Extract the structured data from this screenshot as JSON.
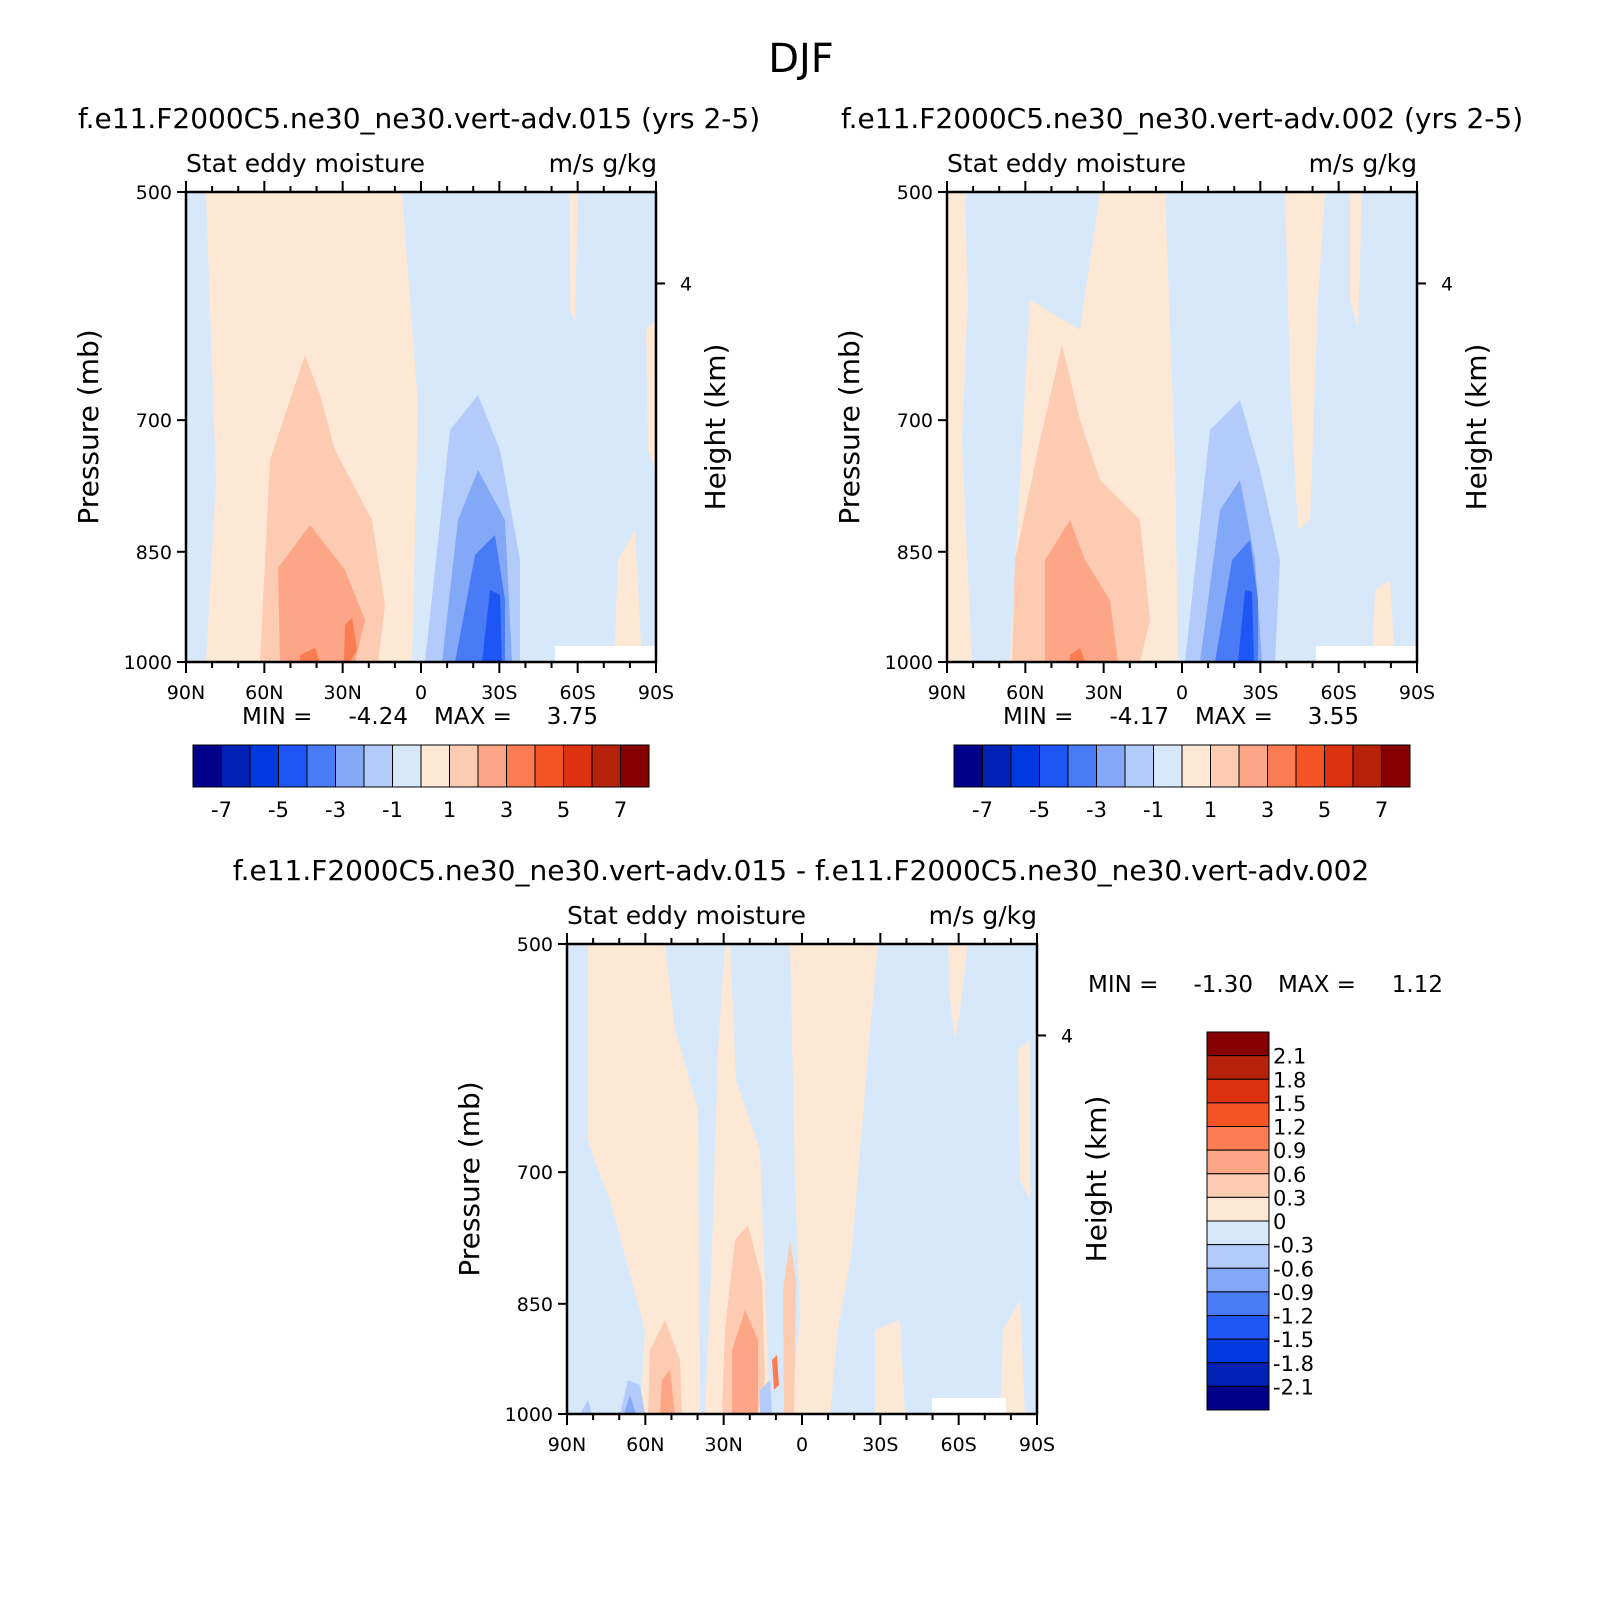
{
  "page": {
    "title": "DJF"
  },
  "chart_data": [
    {
      "type": "heatmap",
      "title": "f.e11.F2000C5.ne30_ne30.vert-adv.015 (yrs 2-5)",
      "subtitle_left": "Stat eddy moisture",
      "subtitle_right": "m/s g/kg",
      "ylabel": "Pressure (mb)",
      "ylabel_right": "Height (km)",
      "y_ticks": [
        "500",
        "700",
        "850",
        "1000"
      ],
      "y_right_ticks": [
        "4"
      ],
      "x_ticks": [
        "90N",
        "60N",
        "30N",
        "0",
        "30S",
        "60S",
        "90S"
      ],
      "xlim": [
        90,
        -90
      ],
      "ylim": [
        500,
        1000
      ],
      "stats": {
        "min_label": "MIN =",
        "min": "-4.24",
        "max_label": "MAX =",
        "max": "3.75"
      },
      "colorbar_labels": [
        "-7",
        "-5",
        "-3",
        "-1",
        "1",
        "3",
        "5",
        "7"
      ],
      "features": [
        {
          "lat": -25,
          "p_top": 660,
          "p_bottom": 1000,
          "peak": -4.24
        },
        {
          "lat": 42,
          "p_top": 650,
          "p_bottom": 1000,
          "peak": 3.75
        }
      ]
    },
    {
      "type": "heatmap",
      "title": "f.e11.F2000C5.ne30_ne30.vert-adv.002 (yrs 2-5)",
      "subtitle_left": "Stat eddy moisture",
      "subtitle_right": "m/s g/kg",
      "ylabel": "Pressure (mb)",
      "ylabel_right": "Height (km)",
      "y_ticks": [
        "500",
        "700",
        "850",
        "1000"
      ],
      "y_right_ticks": [
        "4"
      ],
      "x_ticks": [
        "90N",
        "60N",
        "30N",
        "0",
        "30S",
        "60S",
        "90S"
      ],
      "xlim": [
        90,
        -90
      ],
      "ylim": [
        500,
        1000
      ],
      "stats": {
        "min_label": "MIN =",
        "min": "-4.17",
        "max_label": "MAX =",
        "max": "3.55"
      },
      "colorbar_labels": [
        "-7",
        "-5",
        "-3",
        "-1",
        "1",
        "3",
        "5",
        "7"
      ],
      "features": [
        {
          "lat": -25,
          "p_top": 670,
          "p_bottom": 1000,
          "peak": -4.17
        },
        {
          "lat": 42,
          "p_top": 650,
          "p_bottom": 1000,
          "peak": 3.55
        }
      ]
    },
    {
      "type": "heatmap",
      "title": "f.e11.F2000C5.ne30_ne30.vert-adv.015 - f.e11.F2000C5.ne30_ne30.vert-adv.002",
      "subtitle_left": "Stat eddy moisture",
      "subtitle_right": "m/s g/kg",
      "ylabel": "Pressure (mb)",
      "ylabel_right": "Height (km)",
      "y_ticks": [
        "500",
        "700",
        "850",
        "1000"
      ],
      "y_right_ticks": [
        "4"
      ],
      "x_ticks": [
        "90N",
        "60N",
        "30N",
        "0",
        "30S",
        "60S",
        "90S"
      ],
      "xlim": [
        90,
        -90
      ],
      "ylim": [
        500,
        1000
      ],
      "stats": {
        "min_label": "MIN =",
        "min": "-1.30",
        "max_label": "MAX =",
        "max": "1.12"
      },
      "colorbar_labels": [
        "2.1",
        "1.8",
        "1.5",
        "1.2",
        "0.9",
        "0.6",
        "0.3",
        "0",
        "-0.3",
        "-0.6",
        "-0.9",
        "-1.2",
        "-1.5",
        "-1.8",
        "-2.1"
      ]
    }
  ],
  "colors": {
    "scale": [
      "#00008b",
      "#0022b4",
      "#0039de",
      "#1e55f5",
      "#4a7bf7",
      "#83a8f8",
      "#b2cbfb",
      "#d7e8fb",
      "#fde8d6",
      "#fdcbb1",
      "#fca687",
      "#fb7b52",
      "#f75425",
      "#dd3210",
      "#b62209",
      "#850000"
    ]
  }
}
